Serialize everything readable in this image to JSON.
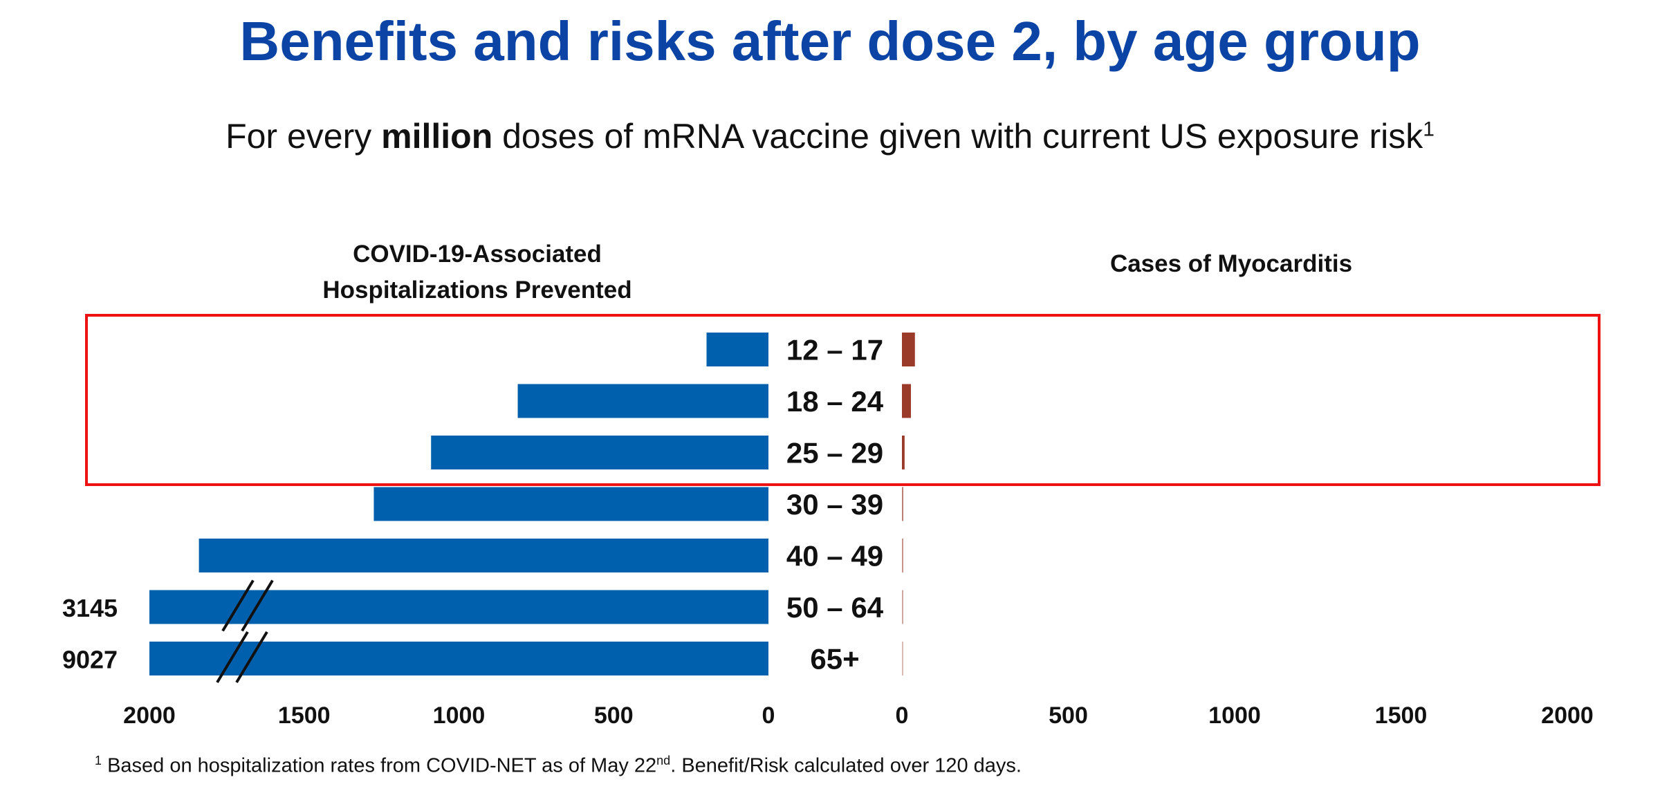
{
  "title": "Benefits and risks after dose 2, by age group",
  "subtitle": {
    "prefix": "For every ",
    "bold": "million",
    "suffix": " doses of mRNA vaccine given with current US exposure risk",
    "superscript": "1"
  },
  "footnote": {
    "marker": "1",
    "text_a": " Based on hospitalization rates from COVID-NET as of May 22",
    "sup": "nd",
    "text_b": ". Benefit/Risk calculated over 120 days."
  },
  "colors": {
    "title": "#0b44a5",
    "hospitalizations_bar": "#0060ad",
    "myocarditis_bar": "#9a3a28",
    "highlight_box": "#ee1111"
  },
  "highlight": {
    "groups": [
      "12 – 17",
      "18 – 24",
      "25 – 29"
    ]
  },
  "chart_data": [
    {
      "type": "bar",
      "title": "COVID-19-Associated Hospitalizations Prevented",
      "orientation": "horizontal",
      "direction": "right-to-left",
      "categories": [
        "12 – 17",
        "18 – 24",
        "25 – 29",
        "30 – 39",
        "40 – 49",
        "50 – 64",
        "65+"
      ],
      "values": [
        200,
        810,
        1090,
        1275,
        1840,
        3145,
        9027
      ],
      "xlim": [
        0,
        2000
      ],
      "axis_break": true,
      "capped_value_labels": [
        "3145",
        "9027"
      ],
      "ticks": [
        "2000",
        "1500",
        "1000",
        "500",
        "0"
      ],
      "grid": false
    },
    {
      "type": "bar",
      "title": "Cases of Myocarditis",
      "orientation": "horizontal",
      "direction": "left-to-right",
      "categories": [
        "12 – 17",
        "18 – 24",
        "25 – 29",
        "30 – 39",
        "40 – 49",
        "50 – 64",
        "65+"
      ],
      "values": [
        39,
        27,
        8,
        4,
        3,
        2,
        1
      ],
      "xlim": [
        0,
        2000
      ],
      "ticks": [
        "0",
        "500",
        "1000",
        "1500",
        "2000"
      ],
      "grid": false
    }
  ]
}
